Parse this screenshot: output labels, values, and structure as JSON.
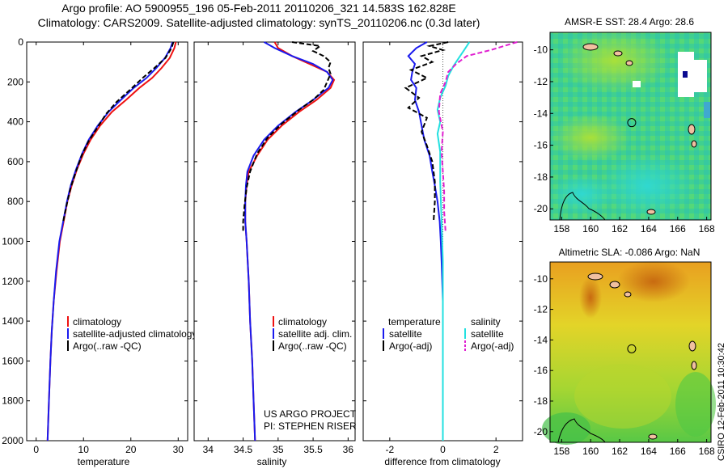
{
  "header": {
    "line1": "Argo profile: AO 5900955_196 05-Feb-2011 20110206_321 14.583S 162.828E",
    "line2": "Climatology: CARS2009. Satellite-adjusted climatology: synTS_20110206.nc (0.3d later)"
  },
  "colors": {
    "red": "#ee1111",
    "blue": "#1a1aee",
    "black": "#000000",
    "cyan": "#22e0e0",
    "magenta": "#e020d0"
  },
  "chart_data": [
    {
      "type": "line",
      "xlabel": "temperature",
      "ylim": [
        0,
        2000
      ],
      "xlim": [
        -2,
        32
      ],
      "xticks": [
        0,
        10,
        20,
        30
      ],
      "yticks": [
        0,
        200,
        400,
        600,
        800,
        1000,
        1200,
        1400,
        1600,
        1800,
        2000
      ],
      "legend": {
        "placement": "lower-right",
        "entries": [
          "climatology",
          "satellite-adjusted climatology",
          "Argo(..raw -QC)"
        ]
      },
      "series": [
        {
          "name": "climatology",
          "color": "red",
          "style": "solid",
          "points": [
            [
              29.5,
              0
            ],
            [
              29.2,
              30
            ],
            [
              28.2,
              80
            ],
            [
              26.5,
              130
            ],
            [
              24.5,
              180
            ],
            [
              21.8,
              230
            ],
            [
              19.0,
              290
            ],
            [
              16.0,
              350
            ],
            [
              13.5,
              420
            ],
            [
              11.5,
              490
            ],
            [
              10.0,
              560
            ],
            [
              8.6,
              640
            ],
            [
              7.5,
              720
            ],
            [
              6.6,
              800
            ],
            [
              5.8,
              900
            ],
            [
              5.0,
              1000
            ],
            [
              4.3,
              1150
            ],
            [
              3.7,
              1300
            ],
            [
              3.3,
              1450
            ],
            [
              3.0,
              1600
            ],
            [
              2.7,
              1800
            ],
            [
              2.4,
              2000
            ]
          ]
        },
        {
          "name": "satellite-adjusted climatology",
          "color": "blue",
          "style": "solid",
          "points": [
            [
              28.8,
              0
            ],
            [
              28.4,
              30
            ],
            [
              27.2,
              80
            ],
            [
              25.4,
              130
            ],
            [
              23.3,
              180
            ],
            [
              20.6,
              230
            ],
            [
              17.9,
              290
            ],
            [
              15.3,
              350
            ],
            [
              13.0,
              420
            ],
            [
              11.1,
              490
            ],
            [
              9.7,
              560
            ],
            [
              8.4,
              640
            ],
            [
              7.3,
              720
            ],
            [
              6.5,
              800
            ],
            [
              5.7,
              900
            ],
            [
              4.9,
              1000
            ],
            [
              4.2,
              1150
            ],
            [
              3.7,
              1300
            ],
            [
              3.3,
              1450
            ],
            [
              3.0,
              1600
            ],
            [
              2.7,
              1800
            ],
            [
              2.4,
              2000
            ]
          ]
        },
        {
          "name": "Argo(..raw -QC)",
          "color": "black",
          "style": "dashed",
          "points": [
            [
              29.0,
              0
            ],
            [
              28.6,
              30
            ],
            [
              27.3,
              80
            ],
            [
              25.0,
              130
            ],
            [
              22.5,
              180
            ],
            [
              19.8,
              240
            ],
            [
              17.0,
              300
            ],
            [
              14.8,
              360
            ],
            [
              12.9,
              430
            ],
            [
              11.0,
              500
            ],
            [
              9.6,
              570
            ],
            [
              8.4,
              650
            ],
            [
              7.3,
              730
            ],
            [
              6.5,
              810
            ],
            [
              5.7,
              900
            ]
          ]
        }
      ]
    },
    {
      "type": "line",
      "xlabel": "salinity",
      "ylim": [
        0,
        2000
      ],
      "xlim": [
        33.8,
        36.1
      ],
      "xticks": [
        34,
        34.5,
        35,
        35.5,
        36
      ],
      "legend": {
        "placement": "lower-right",
        "entries": [
          "climatology",
          "satellite adj. clim.",
          "Argo(..raw -QC)"
        ]
      },
      "annotation": [
        "US ARGO PROJECT",
        "PI: STEPHEN RISER"
      ],
      "series": [
        {
          "name": "climatology",
          "color": "red",
          "style": "solid",
          "points": [
            [
              34.95,
              0
            ],
            [
              35.0,
              30
            ],
            [
              35.2,
              70
            ],
            [
              35.45,
              110
            ],
            [
              35.7,
              150
            ],
            [
              35.8,
              190
            ],
            [
              35.75,
              230
            ],
            [
              35.55,
              290
            ],
            [
              35.3,
              350
            ],
            [
              35.05,
              420
            ],
            [
              34.85,
              490
            ],
            [
              34.7,
              570
            ],
            [
              34.58,
              650
            ],
            [
              34.55,
              720
            ],
            [
              34.53,
              800
            ],
            [
              34.53,
              900
            ],
            [
              34.55,
              1000
            ],
            [
              34.58,
              1200
            ],
            [
              34.6,
              1400
            ],
            [
              34.63,
              1600
            ],
            [
              34.65,
              1800
            ],
            [
              34.67,
              2000
            ]
          ]
        },
        {
          "name": "satellite adj. clim.",
          "color": "blue",
          "style": "solid",
          "points": [
            [
              34.8,
              0
            ],
            [
              34.95,
              30
            ],
            [
              35.2,
              70
            ],
            [
              35.5,
              110
            ],
            [
              35.7,
              150
            ],
            [
              35.78,
              190
            ],
            [
              35.72,
              230
            ],
            [
              35.5,
              290
            ],
            [
              35.25,
              350
            ],
            [
              35.0,
              420
            ],
            [
              34.8,
              490
            ],
            [
              34.65,
              570
            ],
            [
              34.56,
              650
            ],
            [
              34.54,
              720
            ],
            [
              34.53,
              800
            ],
            [
              34.53,
              900
            ],
            [
              34.55,
              1000
            ],
            [
              34.58,
              1200
            ],
            [
              34.6,
              1400
            ],
            [
              34.63,
              1600
            ],
            [
              34.65,
              1800
            ],
            [
              34.67,
              2000
            ]
          ]
        },
        {
          "name": "Argo(..raw -QC)",
          "color": "black",
          "style": "dashed",
          "points": [
            [
              35.2,
              0
            ],
            [
              35.6,
              20
            ],
            [
              35.5,
              45
            ],
            [
              35.65,
              70
            ],
            [
              35.75,
              100
            ],
            [
              35.72,
              130
            ],
            [
              35.75,
              160
            ],
            [
              35.7,
              200
            ],
            [
              35.65,
              240
            ],
            [
              35.5,
              290
            ],
            [
              35.3,
              340
            ],
            [
              35.05,
              410
            ],
            [
              34.85,
              480
            ],
            [
              34.7,
              560
            ],
            [
              34.6,
              650
            ],
            [
              34.55,
              730
            ],
            [
              34.52,
              820
            ],
            [
              34.5,
              900
            ],
            [
              34.5,
              950
            ]
          ]
        }
      ]
    },
    {
      "type": "line",
      "xlabel": "difference from climatology",
      "ylim": [
        0,
        2000
      ],
      "xlim": [
        -3,
        3
      ],
      "xticks": [
        -2,
        0,
        2
      ],
      "legend": {
        "placement": "lower-center",
        "entries": [
          "temperature",
          "salinity",
          "satellite",
          "satellite",
          "Argo(-adj)",
          "Argo(-adj)"
        ]
      },
      "series": [
        {
          "name": "satellite",
          "group": "temperature",
          "color": "blue",
          "style": "solid",
          "points": [
            [
              -0.6,
              0
            ],
            [
              -1.0,
              30
            ],
            [
              -1.3,
              70
            ],
            [
              -1.05,
              110
            ],
            [
              -1.15,
              150
            ],
            [
              -1.2,
              190
            ],
            [
              -1.0,
              230
            ],
            [
              -1.05,
              290
            ],
            [
              -0.9,
              350
            ],
            [
              -0.8,
              420
            ],
            [
              -0.7,
              490
            ],
            [
              -0.5,
              570
            ],
            [
              -0.4,
              650
            ],
            [
              -0.3,
              720
            ],
            [
              -0.2,
              800
            ],
            [
              -0.12,
              900
            ],
            [
              -0.08,
              1000
            ],
            [
              -0.05,
              1100
            ],
            [
              0,
              1300
            ],
            [
              0,
              2000
            ]
          ]
        },
        {
          "name": "Argo(-adj)",
          "group": "temperature",
          "color": "black",
          "style": "dashed",
          "points": [
            [
              0.2,
              0
            ],
            [
              -0.5,
              20
            ],
            [
              0.0,
              40
            ],
            [
              -0.8,
              70
            ],
            [
              -0.4,
              100
            ],
            [
              -1.2,
              140
            ],
            [
              -0.6,
              180
            ],
            [
              -1.4,
              230
            ],
            [
              -0.9,
              280
            ],
            [
              -1.3,
              330
            ],
            [
              -0.6,
              380
            ],
            [
              -0.8,
              450
            ],
            [
              -0.6,
              520
            ],
            [
              -0.4,
              600
            ],
            [
              -0.3,
              700
            ],
            [
              -0.3,
              800
            ],
            [
              -0.35,
              900
            ]
          ]
        },
        {
          "name": "satellite",
          "group": "salinity",
          "color": "cyan",
          "style": "solid",
          "points": [
            [
              1.0,
              0
            ],
            [
              0.8,
              40
            ],
            [
              0.6,
              80
            ],
            [
              0.4,
              120
            ],
            [
              0.2,
              170
            ],
            [
              0.1,
              220
            ],
            [
              -0.1,
              280
            ],
            [
              -0.2,
              340
            ],
            [
              -0.1,
              400
            ],
            [
              -0.2,
              460
            ],
            [
              -0.1,
              550
            ],
            [
              -0.1,
              700
            ],
            [
              -0.05,
              900
            ],
            [
              0,
              1100
            ],
            [
              0,
              2000
            ]
          ]
        },
        {
          "name": "Argo(-adj)",
          "group": "salinity",
          "color": "magenta",
          "style": "dashed",
          "points": [
            [
              2.8,
              0
            ],
            [
              2.3,
              20
            ],
            [
              1.8,
              40
            ],
            [
              0.9,
              70
            ],
            [
              0.5,
              110
            ],
            [
              0.2,
              150
            ],
            [
              0.1,
              200
            ],
            [
              -0.1,
              260
            ],
            [
              -0.15,
              350
            ],
            [
              0.0,
              450
            ],
            [
              -0.05,
              550
            ],
            [
              0.0,
              650
            ],
            [
              0.05,
              750
            ],
            [
              0.05,
              850
            ],
            [
              0.1,
              950
            ]
          ]
        }
      ]
    },
    {
      "type": "heatmap",
      "title": "AMSR-E SST: 28.4 Argo: 28.6",
      "xlim": [
        157.2,
        168.3
      ],
      "ylim": [
        -20.7,
        -8.9
      ],
      "xticks": [
        158,
        160,
        162,
        164,
        166,
        168
      ],
      "yticks": [
        -10,
        -12,
        -14,
        -16,
        -18,
        -20
      ],
      "profile_location": [
        162.83,
        -14.58
      ]
    },
    {
      "type": "heatmap",
      "title": "Altimetric SLA: -0.086 Argo: NaN",
      "xlim": [
        157.2,
        168.3
      ],
      "ylim": [
        -20.7,
        -8.9
      ],
      "xticks": [
        158,
        160,
        162,
        164,
        166,
        168
      ],
      "yticks": [
        -10,
        -12,
        -14,
        -16,
        -18,
        -20
      ],
      "profile_location": [
        162.83,
        -14.58
      ]
    }
  ],
  "side_label": "CSIRO 12-Feb-2011 10:30:42"
}
